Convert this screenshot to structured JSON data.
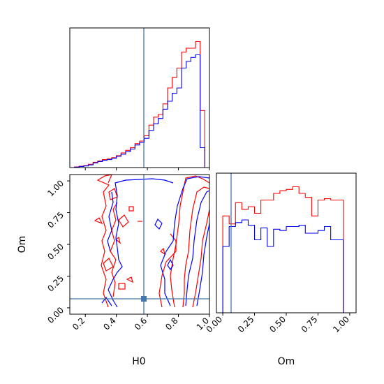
{
  "chart_data": [
    {
      "panel": "H0 marginal",
      "type": "histogram",
      "x_param": "H0",
      "xlim": [
        0.1,
        1.0
      ],
      "x_ticks": [
        0.2,
        0.4,
        0.6,
        0.8,
        1.0
      ],
      "y_ticks": [],
      "truth_line": 0.59,
      "series": [
        {
          "color": "#ff0000",
          "bin_edges": [
            0.1,
            0.13,
            0.16,
            0.19,
            0.22,
            0.25,
            0.28,
            0.31,
            0.34,
            0.37,
            0.4,
            0.43,
            0.46,
            0.49,
            0.52,
            0.55,
            0.58,
            0.61,
            0.64,
            0.67,
            0.7,
            0.73,
            0.76,
            0.79,
            0.82,
            0.85,
            0.88,
            0.91,
            0.94,
            0.97,
            1.0
          ],
          "values": [
            0.0,
            0.005,
            0.01,
            0.015,
            0.025,
            0.04,
            0.05,
            0.06,
            0.065,
            0.075,
            0.09,
            0.11,
            0.13,
            0.15,
            0.18,
            0.2,
            0.24,
            0.32,
            0.38,
            0.4,
            0.48,
            0.6,
            0.68,
            0.75,
            0.87,
            0.9,
            0.9,
            0.95,
            0.43,
            0.0
          ]
        },
        {
          "color": "#0000ff",
          "bin_edges": [
            0.1,
            0.13,
            0.16,
            0.19,
            0.22,
            0.25,
            0.28,
            0.31,
            0.34,
            0.37,
            0.4,
            0.43,
            0.46,
            0.49,
            0.52,
            0.55,
            0.58,
            0.61,
            0.64,
            0.67,
            0.7,
            0.73,
            0.76,
            0.79,
            0.82,
            0.85,
            0.88,
            0.91,
            0.94,
            0.97,
            1.0
          ],
          "values": [
            0.0,
            0.003,
            0.008,
            0.012,
            0.02,
            0.035,
            0.045,
            0.055,
            0.06,
            0.07,
            0.085,
            0.1,
            0.12,
            0.14,
            0.17,
            0.19,
            0.22,
            0.28,
            0.33,
            0.37,
            0.44,
            0.5,
            0.56,
            0.6,
            0.75,
            0.8,
            0.83,
            0.85,
            0.15,
            0.0
          ]
        }
      ]
    },
    {
      "panel": "Om vs H0 contours",
      "type": "contour",
      "xlabel": "H0",
      "ylabel": "Om",
      "xlim": [
        0.1,
        1.0
      ],
      "ylim": [
        -0.05,
        1.05
      ],
      "x_ticks": [
        "0.2",
        "0.4",
        "0.6",
        "0.8",
        "1.0"
      ],
      "y_ticks": [
        "0.00",
        "0.25",
        "0.50",
        "0.75",
        "1.00"
      ],
      "truth_point": {
        "x": 0.59,
        "y": 0.06
      }
    },
    {
      "panel": "Om marginal",
      "type": "histogram",
      "xlabel": "Om",
      "xlim": [
        -0.05,
        1.05
      ],
      "x_ticks": [
        "0.00",
        "0.25",
        "0.50",
        "0.75",
        "1.00"
      ],
      "truth_line": 0.06,
      "series": [
        {
          "color": "#ff0000",
          "bin_edges": [
            -0.05,
            0.0,
            0.05,
            0.1,
            0.15,
            0.2,
            0.25,
            0.3,
            0.35,
            0.4,
            0.45,
            0.5,
            0.55,
            0.6,
            0.65,
            0.7,
            0.75,
            0.8,
            0.85,
            0.9,
            0.95,
            1.0,
            1.05
          ],
          "values": [
            0.0,
            0.73,
            0.67,
            0.83,
            0.78,
            0.8,
            0.75,
            0.85,
            0.85,
            0.9,
            0.92,
            0.93,
            0.95,
            0.9,
            0.87,
            0.73,
            0.85,
            0.86,
            0.85,
            0.85,
            0.0,
            0.0
          ]
        },
        {
          "color": "#0000ff",
          "bin_edges": [
            -0.05,
            0.0,
            0.05,
            0.1,
            0.15,
            0.2,
            0.25,
            0.3,
            0.35,
            0.4,
            0.45,
            0.5,
            0.55,
            0.6,
            0.65,
            0.7,
            0.75,
            0.8,
            0.85,
            0.9,
            0.95,
            1.0,
            1.05
          ],
          "values": [
            0.0,
            0.5,
            0.65,
            0.68,
            0.7,
            0.66,
            0.55,
            0.64,
            0.5,
            0.63,
            0.62,
            0.65,
            0.65,
            0.66,
            0.6,
            0.6,
            0.62,
            0.65,
            0.55,
            0.55,
            0.0,
            0.0
          ]
        }
      ]
    }
  ]
}
